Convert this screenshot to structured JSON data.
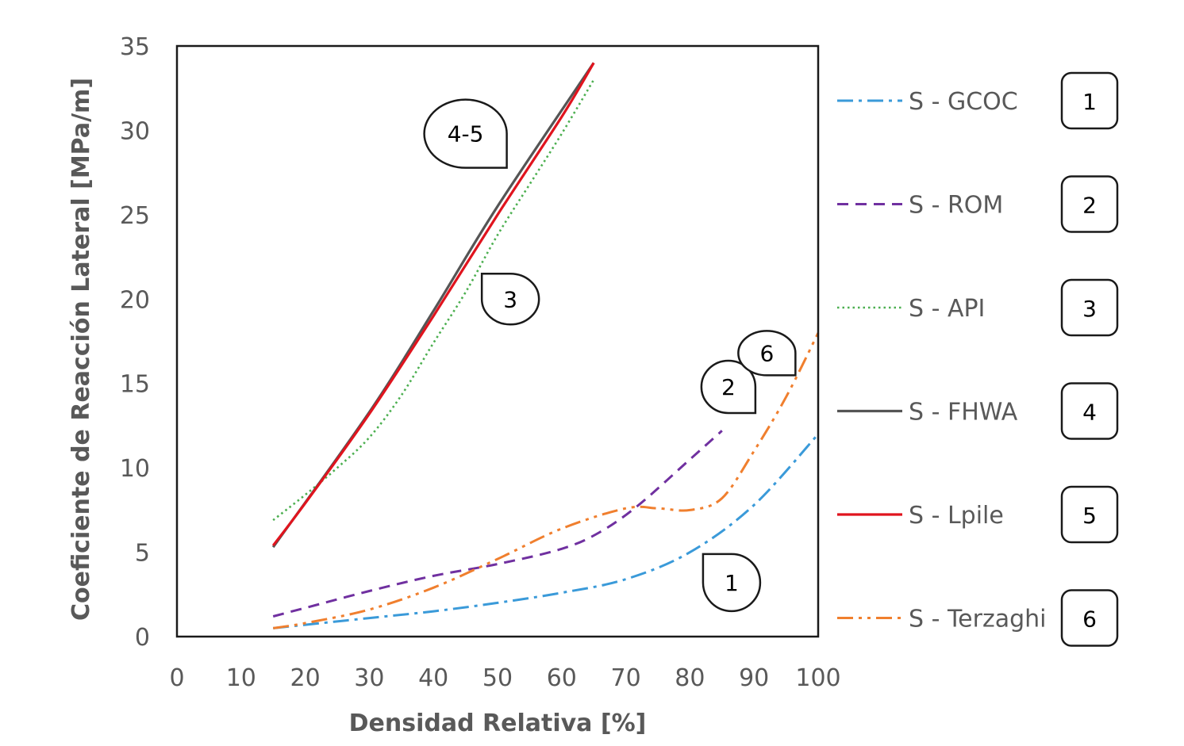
{
  "chart_data": {
    "type": "line",
    "title": "",
    "xlabel": "Densidad Relativa [%]",
    "ylabel": "Coeficiente de Reacción Lateral [MPa/m]",
    "xlim": [
      0,
      100
    ],
    "ylim": [
      0,
      35
    ],
    "xticks": [
      "0",
      "10",
      "20",
      "30",
      "40",
      "50",
      "60",
      "70",
      "80",
      "90",
      "100"
    ],
    "yticks": [
      "0",
      "5",
      "10",
      "15",
      "20",
      "25",
      "30",
      "35"
    ],
    "grid": false,
    "legend_position": "right",
    "series": [
      {
        "name": "S - GCOC",
        "badge": "1",
        "color": "#3a9ad9",
        "dash": "dashdot",
        "x": [
          15,
          20,
          30,
          40,
          50,
          60,
          70,
          80,
          90,
          100
        ],
        "y": [
          0.5,
          0.7,
          1.1,
          1.5,
          2.0,
          2.6,
          3.4,
          5.0,
          7.8,
          12.0
        ]
      },
      {
        "name": "S - ROM",
        "badge": "2",
        "color": "#7030a0",
        "dash": "dashed",
        "x": [
          15,
          20,
          30,
          40,
          50,
          60,
          66,
          72,
          80,
          85
        ],
        "y": [
          1.2,
          1.7,
          2.7,
          3.6,
          4.3,
          5.2,
          6.2,
          7.8,
          10.5,
          12.2
        ]
      },
      {
        "name": "S - API",
        "badge": "3",
        "color": "#4caf50",
        "dash": "dotted",
        "x": [
          15,
          20,
          25,
          30,
          35,
          40,
          45,
          50,
          55,
          60,
          65
        ],
        "y": [
          6.9,
          8.4,
          10.0,
          11.8,
          14.3,
          17.4,
          20.4,
          23.8,
          26.8,
          29.8,
          33.0
        ]
      },
      {
        "name": "S - FHWA",
        "badge": "4",
        "color": "#555555",
        "dash": "solid",
        "x": [
          15,
          30,
          40,
          50,
          65
        ],
        "y": [
          5.3,
          13.3,
          19.3,
          25.5,
          34.0
        ]
      },
      {
        "name": "S - Lpile",
        "badge": "5",
        "color": "#e0141e",
        "dash": "solid",
        "x": [
          15,
          20,
          30,
          40,
          50,
          60,
          65
        ],
        "y": [
          5.4,
          7.9,
          13.2,
          19.0,
          25.0,
          30.8,
          34.0
        ]
      },
      {
        "name": "S - Terzaghi",
        "badge": "6",
        "color": "#f07f2e",
        "dash": "dashdotdot",
        "x": [
          15,
          20,
          30,
          40,
          50,
          60,
          70,
          75,
          80,
          85,
          90,
          95,
          100
        ],
        "y": [
          0.5,
          0.8,
          1.6,
          2.9,
          4.6,
          6.4,
          7.6,
          7.6,
          7.5,
          8.2,
          11.0,
          14.2,
          18.0
        ]
      }
    ],
    "callouts": [
      {
        "label": "4-5",
        "x": 45,
        "y": 29.8
      },
      {
        "label": "3",
        "x": 52,
        "y": 20.0
      },
      {
        "label": "2",
        "x": 86,
        "y": 14.8
      },
      {
        "label": "6",
        "x": 92,
        "y": 16.8
      },
      {
        "label": "1",
        "x": 86.5,
        "y": 3.2
      }
    ]
  }
}
